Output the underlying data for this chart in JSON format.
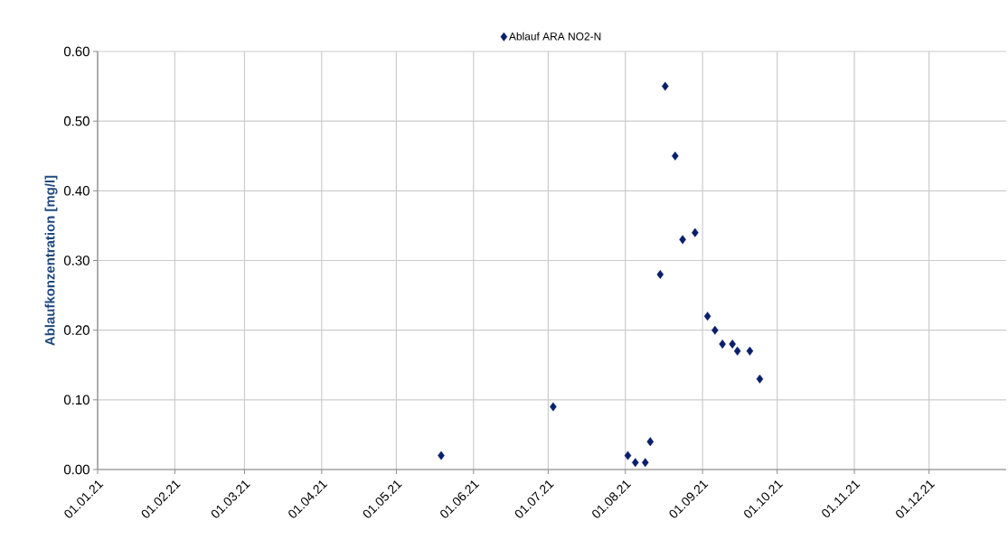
{
  "chart_data": {
    "type": "scatter",
    "ylabel": "Ablaufkonzentration  [mg/l]",
    "x": [
      "2021-05-19",
      "2021-07-03",
      "2021-08-02",
      "2021-08-05",
      "2021-08-09",
      "2021-08-11",
      "2021-08-15",
      "2021-08-17",
      "2021-08-21",
      "2021-08-24",
      "2021-08-29",
      "2021-09-03",
      "2021-09-06",
      "2021-09-09",
      "2021-09-13",
      "2021-09-15",
      "2021-09-20",
      "2021-09-24"
    ],
    "series": [
      {
        "name": "Ablauf ARA NO2-N",
        "color": "#0a1f6b",
        "values": [
          0.02,
          0.09,
          0.02,
          0.01,
          0.01,
          0.04,
          0.28,
          0.55,
          0.45,
          0.33,
          0.34,
          0.22,
          0.2,
          0.18,
          0.18,
          0.17,
          0.17,
          0.13
        ]
      }
    ],
    "xlim": [
      "2021-01-01",
      "2022-01-01"
    ],
    "xticks": [
      {
        "value": "2021-01-01",
        "label": "01.01.21"
      },
      {
        "value": "2021-02-01",
        "label": "01.02.21"
      },
      {
        "value": "2021-03-01",
        "label": "01.03.21"
      },
      {
        "value": "2021-04-01",
        "label": "01.04.21"
      },
      {
        "value": "2021-05-01",
        "label": "01.05.21"
      },
      {
        "value": "2021-06-01",
        "label": "01.06.21"
      },
      {
        "value": "2021-07-01",
        "label": "01.07.21"
      },
      {
        "value": "2021-08-01",
        "label": "01.08.21"
      },
      {
        "value": "2021-09-01",
        "label": "01.09.21"
      },
      {
        "value": "2021-10-01",
        "label": "01.10.21"
      },
      {
        "value": "2021-11-01",
        "label": "01.11.21"
      },
      {
        "value": "2021-12-01",
        "label": "01.12.21"
      }
    ],
    "ylim": [
      0,
      0.6
    ],
    "yticks": [
      {
        "value": 0,
        "label": "0.00"
      },
      {
        "value": 0.1,
        "label": "0.10"
      },
      {
        "value": 0.2,
        "label": "0.20"
      },
      {
        "value": 0.3,
        "label": "0.30"
      },
      {
        "value": 0.4,
        "label": "0.40"
      },
      {
        "value": 0.5,
        "label": "0.50"
      },
      {
        "value": 0.6,
        "label": "0.60"
      }
    ],
    "grid": true,
    "legend": "top",
    "marker": "diamond"
  }
}
